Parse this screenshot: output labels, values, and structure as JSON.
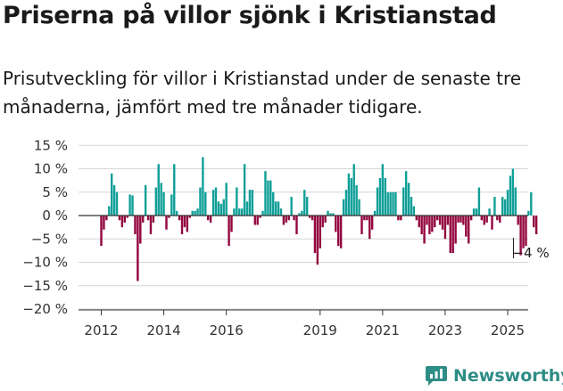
{
  "title": "Priserna på villor sjönk i Kristianstad",
  "subtitle": "Prisutveckling för villor i Kristianstad under de senaste tre månaderna, jämfört med tre månader tidigare.",
  "brand": {
    "name": "Newsworthy",
    "icon": "newsworthy-logo-icon",
    "color": "#2e8d86"
  },
  "colors": {
    "positive": "#109f98",
    "negative": "#93063f",
    "grid": "#d5d5d5",
    "axis": "#333333"
  },
  "chart_data": {
    "type": "bar",
    "title": "",
    "xlabel": "",
    "ylabel": "",
    "ylim": [
      -20,
      15
    ],
    "y_ticks": [
      15,
      10,
      5,
      0,
      -5,
      -10,
      -15,
      -20
    ],
    "y_tick_labels": [
      "15 %",
      "10 %",
      "5 %",
      "0 %",
      "−5 %",
      "−10 %",
      "−15 %",
      "−20 %"
    ],
    "x_ticks": [
      "2012",
      "2014",
      "2016",
      "2019",
      "2021",
      "2023",
      "2025"
    ],
    "x_tick_positions": [
      "2012-01",
      "2014-01",
      "2016-01",
      "2019-01",
      "2021-01",
      "2023-01",
      "2025-01"
    ],
    "x_start": "2012-01",
    "grid": true,
    "annotation": {
      "text": "−4 %",
      "month": "2025-08",
      "value": -4
    },
    "values": [
      -6.5,
      -3,
      -1,
      2,
      9,
      6.5,
      5,
      -1,
      -2.5,
      -1.5,
      -0.5,
      4.5,
      4.3,
      -4,
      -14,
      -6,
      -1.5,
      6.5,
      -1,
      -4,
      -1.5,
      6,
      11,
      7,
      5,
      -3,
      -0.5,
      4.5,
      11,
      1,
      -1,
      -4,
      -2.5,
      -3.5,
      -0.5,
      1,
      1,
      1.5,
      6,
      12.5,
      5,
      -1,
      -1.5,
      5.5,
      6,
      3,
      2.5,
      3.5,
      7,
      -6.5,
      -3.5,
      1.5,
      6,
      1.5,
      1.5,
      11,
      3,
      5.5,
      5.5,
      -2,
      -2,
      -0.5,
      1,
      9.5,
      7.5,
      7.5,
      5,
      3,
      3,
      1.5,
      -2,
      -1.5,
      -1,
      4,
      -1,
      -4,
      0.5,
      1,
      5.5,
      4,
      -0.5,
      -1,
      -8,
      -10.5,
      -7,
      -2.5,
      -1.5,
      1,
      0.5,
      0.5,
      -3.5,
      -6.5,
      -7,
      3.5,
      5.5,
      9,
      8,
      11,
      6.5,
      3.5,
      -4,
      -1,
      -1,
      -5,
      -3,
      1,
      6,
      8,
      11,
      8,
      5,
      5,
      5,
      5,
      -1,
      -1,
      6,
      9.5,
      7,
      4,
      2,
      -1,
      -2.5,
      -4,
      -6,
      -2,
      -4,
      -3.5,
      -2.5,
      -1,
      -2,
      -3,
      -5,
      -2,
      -8,
      -8,
      -6,
      -1.5,
      -1.5,
      -2,
      -4.5,
      -6,
      -1,
      1.5,
      1.5,
      6,
      -1,
      -2,
      -1.5,
      1.5,
      -3,
      4,
      -1,
      -1.5,
      4,
      3.5,
      5.5,
      8.5,
      10,
      6,
      -2,
      -8.5,
      -7,
      -6.5,
      1,
      5,
      -2.5,
      -4
    ]
  }
}
